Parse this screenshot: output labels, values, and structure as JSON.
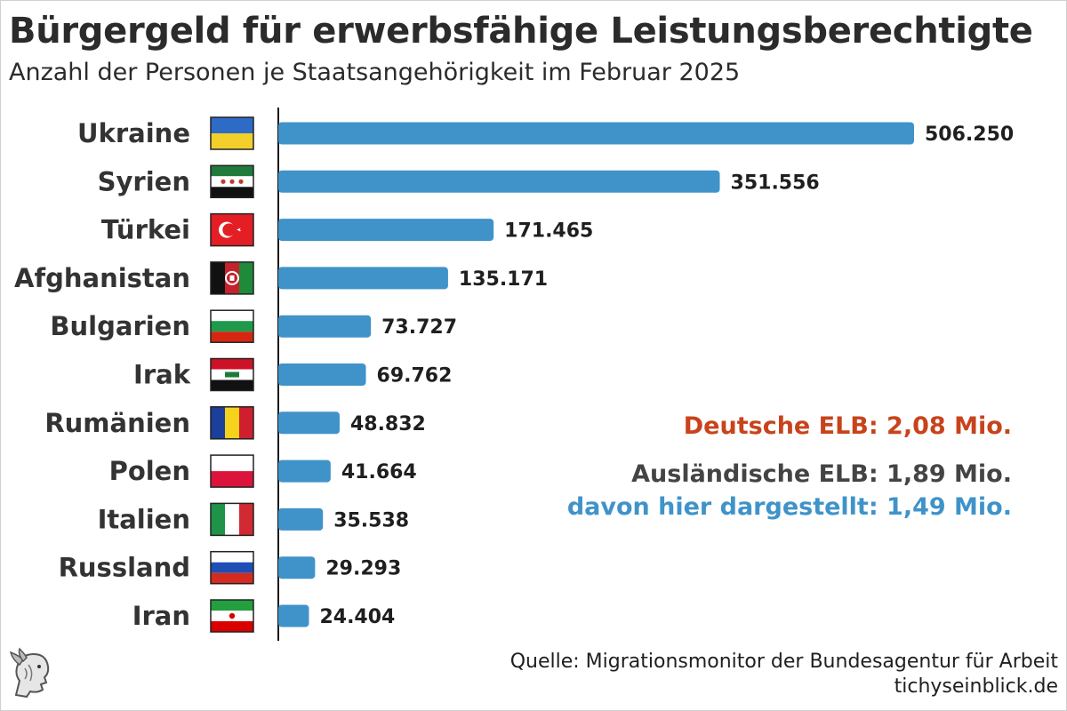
{
  "title": "Bürgergeld für erwerbsfähige Leistungsberechtigte",
  "subtitle": "Anzahl der Personen je Staatsangehörigkeit im Februar 2025",
  "colors": {
    "bar": "#3f93c9",
    "deutsche": "#c8431b",
    "auslaendische": "#444444",
    "davon": "#3f93c9"
  },
  "chart_data": {
    "type": "bar",
    "orientation": "horizontal",
    "categories": [
      "Ukraine",
      "Syrien",
      "Türkei",
      "Afghanistan",
      "Bulgarien",
      "Irak",
      "Rumänien",
      "Polen",
      "Italien",
      "Russland",
      "Iran"
    ],
    "value_labels": [
      "506.250",
      "351.556",
      "171.465",
      "135.171",
      "73.727",
      "69.762",
      "48.832",
      "41.664",
      "35.538",
      "29.293",
      "24.404"
    ],
    "series": [
      {
        "values": [
          506250,
          351556,
          171465,
          135171,
          73727,
          69762,
          48832,
          41664,
          35538,
          29293,
          24404
        ]
      }
    ],
    "flags": [
      "ukraine-flag-icon",
      "syria-flag-icon",
      "turkey-flag-icon",
      "afghanistan-flag-icon",
      "bulgaria-flag-icon",
      "iraq-flag-icon",
      "romania-flag-icon",
      "poland-flag-icon",
      "italy-flag-icon",
      "russia-flag-icon",
      "iran-flag-icon"
    ],
    "xlim": [
      0,
      506250
    ],
    "grid": false,
    "legend": "none"
  },
  "summary": {
    "deutsche": "Deutsche ELB: 2,08 Mio.",
    "auslaendische": "Ausländische ELB: 1,89 Mio.",
    "davon": "davon hier dargestellt: 1,49 Mio."
  },
  "source": {
    "line1": "Quelle: Migrationsmonitor der Bundesagentur für Arbeit",
    "line2": "tichyseinblick.de"
  },
  "logo_icon": "hermes-head-logo-icon"
}
